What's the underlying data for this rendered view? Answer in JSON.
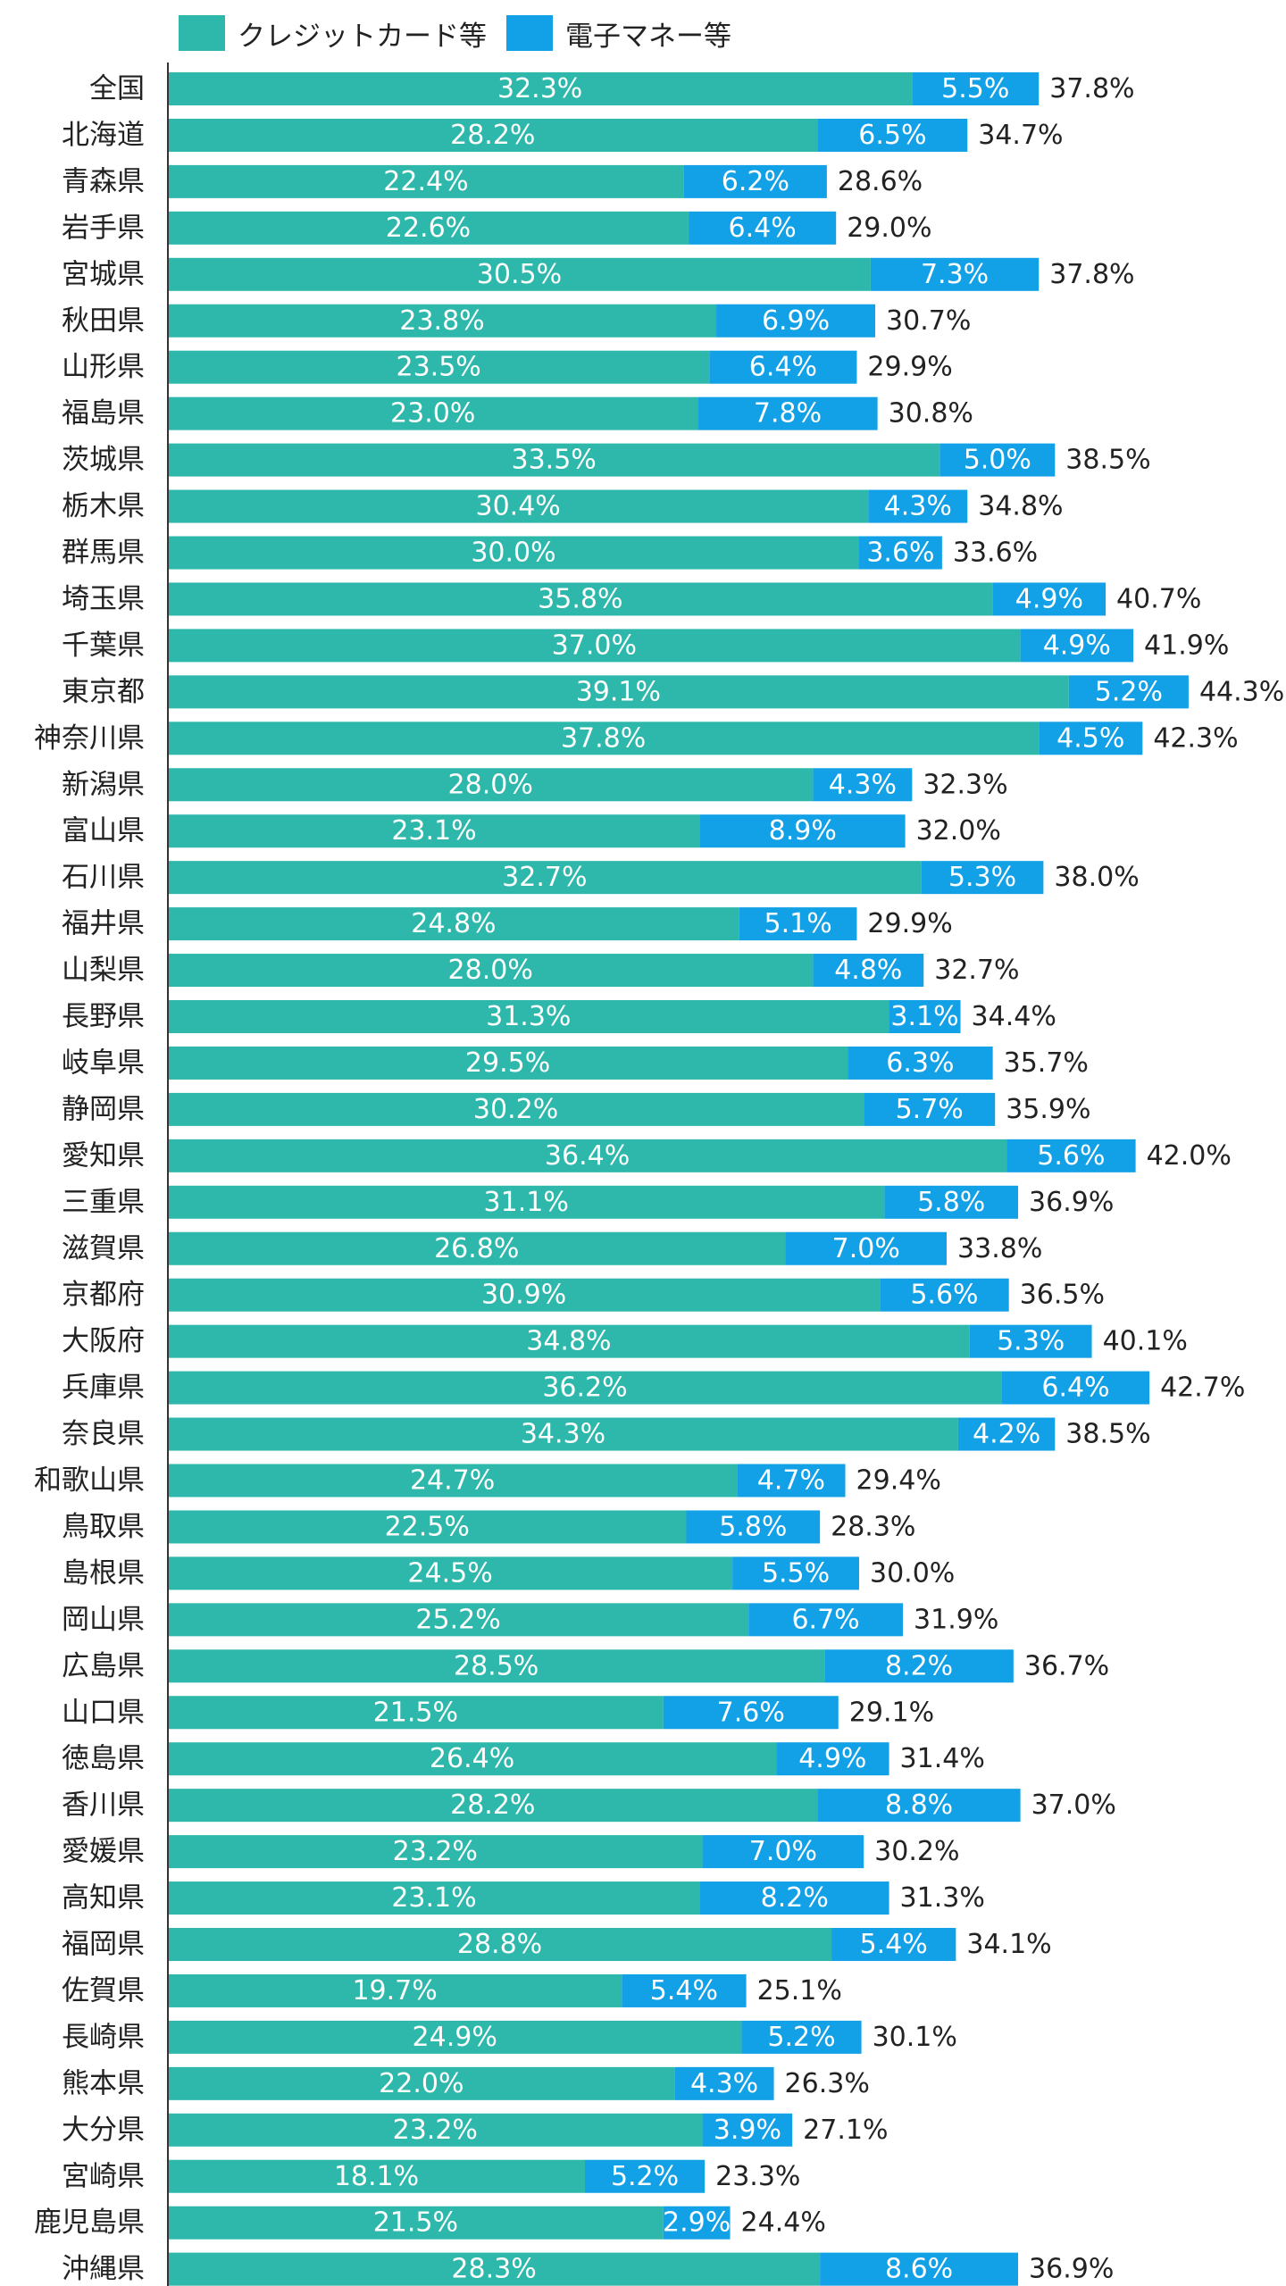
{
  "colors": {
    "credit": "#2db8ab",
    "emoney": "#12a0e6",
    "text": "#222222",
    "axis": "#333333",
    "segment_label": "#ffffff"
  },
  "chart_data": {
    "type": "bar",
    "orientation": "horizontal",
    "stacked": true,
    "title": "",
    "xlabel": "",
    "ylabel": "",
    "xlim": [
      0,
      47
    ],
    "grid": false,
    "legend_position": "top-left",
    "value_format": "0.0%",
    "categories": [
      "全国",
      "北海道",
      "青森県",
      "岩手県",
      "宮城県",
      "秋田県",
      "山形県",
      "福島県",
      "茨城県",
      "栃木県",
      "群馬県",
      "埼玉県",
      "千葉県",
      "東京都",
      "神奈川県",
      "新潟県",
      "富山県",
      "石川県",
      "福井県",
      "山梨県",
      "長野県",
      "岐阜県",
      "静岡県",
      "愛知県",
      "三重県",
      "滋賀県",
      "京都府",
      "大阪府",
      "兵庫県",
      "奈良県",
      "和歌山県",
      "鳥取県",
      "島根県",
      "岡山県",
      "広島県",
      "山口県",
      "徳島県",
      "香川県",
      "愛媛県",
      "高知県",
      "福岡県",
      "佐賀県",
      "長崎県",
      "熊本県",
      "大分県",
      "宮崎県",
      "鹿児島県",
      "沖縄県"
    ],
    "series": [
      {
        "name": "クレジットカード等",
        "values": [
          32.3,
          28.2,
          22.4,
          22.6,
          30.5,
          23.8,
          23.5,
          23.0,
          33.5,
          30.4,
          30.0,
          35.8,
          37.0,
          39.1,
          37.8,
          28.0,
          23.1,
          32.7,
          24.8,
          28.0,
          31.3,
          29.5,
          30.2,
          36.4,
          31.1,
          26.8,
          30.9,
          34.8,
          36.2,
          34.3,
          24.7,
          22.5,
          24.5,
          25.2,
          28.5,
          21.5,
          26.4,
          28.2,
          23.2,
          23.1,
          28.8,
          19.7,
          24.9,
          22.0,
          23.2,
          18.1,
          21.5,
          28.3
        ]
      },
      {
        "name": "電子マネー等",
        "values": [
          5.5,
          6.5,
          6.2,
          6.4,
          7.3,
          6.9,
          6.4,
          7.8,
          5.0,
          4.3,
          3.6,
          4.9,
          4.9,
          5.2,
          4.5,
          4.3,
          8.9,
          5.3,
          5.1,
          4.8,
          3.1,
          6.3,
          5.7,
          5.6,
          5.8,
          7.0,
          5.6,
          5.3,
          6.4,
          4.2,
          4.7,
          5.8,
          5.5,
          6.7,
          8.2,
          7.6,
          4.9,
          8.8,
          7.0,
          8.2,
          5.4,
          5.4,
          5.2,
          4.3,
          3.9,
          5.2,
          2.9,
          8.6
        ]
      }
    ],
    "totals": [
      37.8,
      34.7,
      28.6,
      29.0,
      37.8,
      30.7,
      29.9,
      30.8,
      38.5,
      34.8,
      33.6,
      40.7,
      41.9,
      44.3,
      42.3,
      32.3,
      32.0,
      38.0,
      29.9,
      32.7,
      34.4,
      35.7,
      35.9,
      42.0,
      36.9,
      33.8,
      36.5,
      40.1,
      42.7,
      38.5,
      29.4,
      28.3,
      30.0,
      31.9,
      36.7,
      29.1,
      31.4,
      37.0,
      30.2,
      31.3,
      34.1,
      25.1,
      30.1,
      26.3,
      27.1,
      23.3,
      24.4,
      36.9
    ]
  }
}
